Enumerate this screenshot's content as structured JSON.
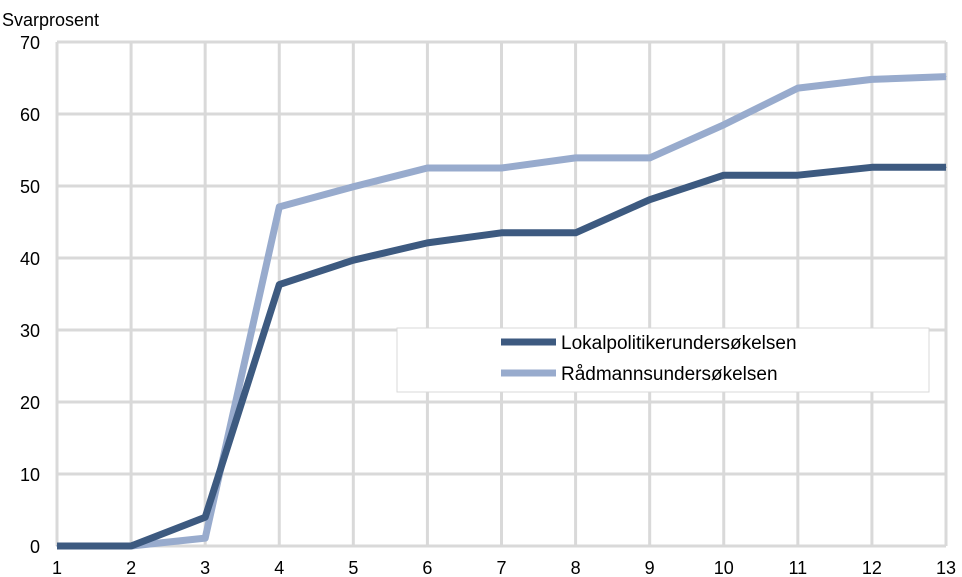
{
  "chart_data": {
    "type": "line",
    "title": "",
    "xlabel": "",
    "ylabel": "Svarprosent",
    "x": [
      1,
      2,
      3,
      4,
      5,
      6,
      7,
      8,
      9,
      10,
      11,
      12,
      13
    ],
    "xlim": [
      1,
      13
    ],
    "ylim": [
      0,
      70
    ],
    "yticks": [
      0,
      10,
      20,
      30,
      40,
      50,
      60,
      70
    ],
    "grid": true,
    "legend_position": "center-right",
    "series": [
      {
        "name": "Lokalpolitikerundersøkelsen",
        "color": "#3d5a80",
        "values": [
          0,
          0,
          4,
          36.3,
          39.7,
          42.1,
          43.5,
          43.5,
          48.1,
          51.5,
          51.5,
          52.6,
          52.6
        ]
      },
      {
        "name": "Rådmannsundersøkelsen",
        "color": "#98abcd",
        "values": [
          0,
          0,
          1.1,
          47.1,
          49.9,
          52.5,
          52.5,
          53.9,
          53.9,
          58.5,
          63.6,
          64.8,
          65.2
        ]
      }
    ]
  }
}
